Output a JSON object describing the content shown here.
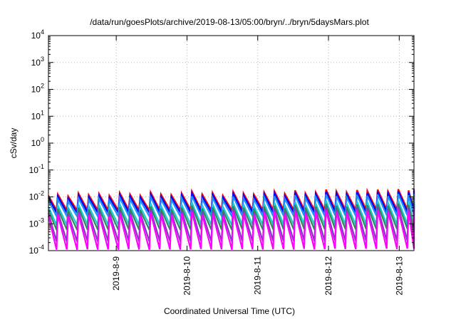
{
  "chart_data": {
    "type": "line",
    "title": "/data/run/goesPlots/archive/2019-08-13/05:00/bryn/../bryn/5daysMars.plot",
    "xlabel": "Coordinated Universal Time (UTC)",
    "ylabel": "cSv/day",
    "x_type": "date",
    "xlim": [
      "2019-08-08 01:00",
      "2019-08-13 05:00"
    ],
    "ylim": [
      0.0001,
      10000
    ],
    "y_scale": "log",
    "grid": true,
    "x_ticks": [
      "2019-8-9",
      "2019-8-10",
      "2019-8-11",
      "2019-8-12",
      "2019-8-13"
    ],
    "y_ticks": [
      {
        "base": "10",
        "exp": "-4",
        "value": 0.0001
      },
      {
        "base": "10",
        "exp": "-3",
        "value": 0.001
      },
      {
        "base": "10",
        "exp": "-2",
        "value": 0.01
      },
      {
        "base": "10",
        "exp": "-1",
        "value": 0.1
      },
      {
        "base": "10",
        "exp": "0",
        "value": 1
      },
      {
        "base": "10",
        "exp": "1",
        "value": 10
      },
      {
        "base": "10",
        "exp": "2",
        "value": 100
      },
      {
        "base": "10",
        "exp": "3",
        "value": 1000
      },
      {
        "base": "10",
        "exp": "4",
        "value": 10000
      }
    ],
    "sawtooth": {
      "cycle_hours": 3.5,
      "phase_start": "2019-08-08 00:40",
      "amplitude_multiplier": [
        0.9,
        1.0,
        0.85,
        1.1,
        0.95,
        1.05,
        0.9,
        1.15,
        1.0,
        0.9,
        1.2,
        1.0,
        0.95,
        1.1,
        1.3,
        1.0,
        1.15,
        0.9,
        1.25,
        1.1,
        1.0,
        1.2,
        1.3,
        1.05,
        1.4,
        1.1,
        1.2,
        1.5,
        1.3,
        1.2,
        1.45,
        1.35,
        1.5,
        1.3,
        1.55,
        1.4,
        1.6
      ]
    },
    "series": [
      {
        "color": "#ff0000",
        "peak": 0.0125,
        "trough": 0.0032
      },
      {
        "color": "#0000ff",
        "peak": 0.0105,
        "trough": 0.0026
      },
      {
        "color": "#1e90ff",
        "peak": 0.0082,
        "trough": 0.0019
      },
      {
        "color": "#20c8d8",
        "peak": 0.0048,
        "trough": 0.0009
      },
      {
        "color": "#2e8b57",
        "peak": 0.0036,
        "trough": 0.0006
      },
      {
        "color": "#7b3fbf",
        "peak": 0.0028,
        "trough": 0.00022
      },
      {
        "color": "#ff00ff",
        "peak": 0.0022,
        "trough": 0.00011
      }
    ]
  }
}
